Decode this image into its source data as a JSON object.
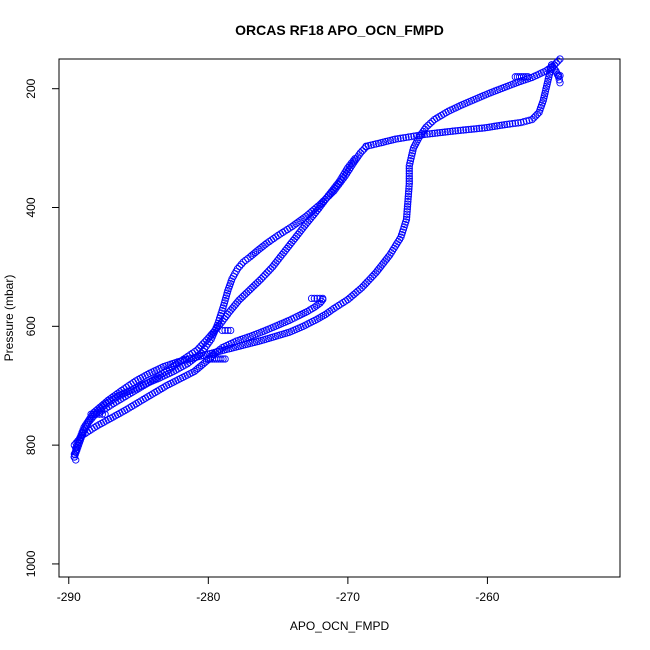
{
  "chart_data": {
    "type": "scatter",
    "title": "ORCAS RF18 APO_OCN_FMPD",
    "xlabel": "APO_OCN_FMPD",
    "ylabel": "Pressure (mbar)",
    "xlim": [
      -290.7,
      -250.5
    ],
    "ylim": [
      1022,
      150
    ],
    "y_reversed": true,
    "x_ticks": [
      -290,
      -280,
      -270,
      -260
    ],
    "y_ticks": [
      200,
      400,
      600,
      800,
      1000
    ],
    "x_tick_labels": [
      "-290",
      "-280",
      "-270",
      "-260"
    ],
    "y_tick_labels": [
      "200",
      "400",
      "600",
      "800",
      "1000"
    ],
    "grid": false,
    "legend": "none",
    "marker": "open-circle",
    "color": "#0000ff",
    "series": [
      {
        "x": [
          -254.8,
          -255.2,
          -255.8,
          -256.8,
          -257.8,
          -258.8,
          -259.8,
          -260.8,
          -261.8,
          -262.8,
          -263.8,
          -264.4,
          -264.9,
          -265.3,
          -265.6,
          -265.6,
          -265.7,
          -265.8,
          -266.2,
          -267.0,
          -268.0,
          -269.0,
          -270.0,
          -271.0,
          -271.6,
          -272.2,
          -273.2,
          -274.2,
          -275.2,
          -276.2,
          -277.2,
          -278.2,
          -279.2,
          -280.2,
          -281.2,
          -282.2,
          -283.2,
          -284.2,
          -285.2,
          -286.2,
          -287.2,
          -288.2,
          -288.9,
          -289.4,
          -289.6
        ],
        "y": [
          150,
          160,
          170,
          181,
          189,
          198,
          207,
          217,
          227,
          238,
          252,
          265,
          282,
          300,
          330,
          360,
          390,
          420,
          450,
          480,
          510,
          535,
          555,
          570,
          580,
          588,
          600,
          610,
          617,
          624,
          630,
          636,
          642,
          648,
          654,
          660,
          668,
          679,
          692,
          708,
          725,
          745,
          770,
          800,
          820
        ]
      },
      {
        "x": [
          -289.6,
          -289.3,
          -289.0,
          -288.6,
          -288.0,
          -287.3,
          -286.5,
          -285.5,
          -284.5,
          -283.5,
          -282.5,
          -281.5,
          -280.5,
          -279.8,
          -279.3,
          -278.9,
          -278.6,
          -278.3,
          -277.9,
          -277.5,
          -277.0,
          -276.5,
          -275.8,
          -275.0,
          -274.0,
          -273.0,
          -272.0,
          -271.0,
          -270.2,
          -269.6,
          -269.1,
          -268.7
        ],
        "y": [
          820,
          800,
          780,
          762,
          745,
          730,
          718,
          707,
          697,
          687,
          676,
          663,
          645,
          622,
          595,
          565,
          540,
          520,
          503,
          492,
          483,
          473,
          460,
          447,
          432,
          415,
          395,
          372,
          347,
          325,
          308,
          298
        ]
      },
      {
        "x": [
          -268.7,
          -267.8,
          -266.6,
          -264.5,
          -262.3,
          -260.2,
          -258.6,
          -257.6,
          -256.8,
          -256.3,
          -256.0,
          -255.8,
          -255.6,
          -255.4
        ],
        "y": [
          297,
          292,
          285,
          277,
          271,
          266,
          260,
          257,
          252,
          240,
          220,
          200,
          180,
          160
        ]
      },
      {
        "x": [
          -255.4,
          -255.1,
          -254.9,
          -254.8
        ],
        "y": [
          160,
          170,
          180,
          190
        ]
      },
      {
        "x": [
          -289.6,
          -289.0,
          -288.0,
          -287.0,
          -286.0,
          -285.0,
          -284.0,
          -283.0,
          -282.0,
          -281.0,
          -280.5,
          -280.0,
          -279.5,
          -279.0,
          -278.0,
          -277.0,
          -276.0,
          -275.0,
          -274.2,
          -273.5,
          -272.9,
          -272.4,
          -272.0,
          -271.8
        ],
        "y": [
          800,
          783,
          768,
          755,
          742,
          728,
          714,
          700,
          688,
          676,
          666,
          656,
          645,
          636,
          625,
          617,
          608,
          598,
          590,
          582,
          575,
          568,
          561,
          555
        ]
      },
      {
        "x": [
          -287.8,
          -286.8,
          -285.8,
          -284.8,
          -283.8,
          -282.8,
          -281.8,
          -280.8,
          -280.0,
          -279.2,
          -278.5,
          -277.8,
          -277.0,
          -276.2,
          -275.4,
          -274.6,
          -273.8,
          -273.0,
          -272.2,
          -271.4,
          -270.6,
          -270.0,
          -269.5
        ],
        "y": [
          745,
          730,
          716,
          702,
          688,
          672,
          656,
          640,
          620,
          598,
          576,
          556,
          538,
          520,
          500,
          476,
          452,
          428,
          405,
          380,
          356,
          333,
          318
        ]
      },
      {
        "x": [
          -289.5,
          -289.5,
          -289.6,
          -289.6,
          -289.5
        ],
        "y": [
          805,
          810,
          815,
          820,
          825
        ]
      },
      {
        "x": [
          -288.4,
          -288.2,
          -288.0,
          -287.8,
          -287.6,
          -287.4
        ],
        "y": [
          748,
          748,
          748,
          748,
          748,
          748
        ]
      },
      {
        "x": [
          -280.0,
          -279.7,
          -279.4,
          -279.1,
          -278.8
        ],
        "y": [
          655,
          655,
          655,
          655,
          655
        ]
      },
      {
        "x": [
          -279.0,
          -278.8,
          -278.6,
          -278.4
        ],
        "y": [
          607,
          607,
          607,
          607
        ]
      },
      {
        "x": [
          -272.6,
          -272.4,
          -272.2,
          -272.0,
          -271.8
        ],
        "y": [
          553,
          553,
          553,
          553,
          553
        ]
      },
      {
        "x": [
          -258.0,
          -257.7,
          -257.4,
          -257.1
        ],
        "y": [
          180,
          180,
          180,
          180
        ]
      },
      {
        "x": [
          -254.9,
          -254.8
        ],
        "y": [
          178,
          178
        ]
      }
    ]
  }
}
